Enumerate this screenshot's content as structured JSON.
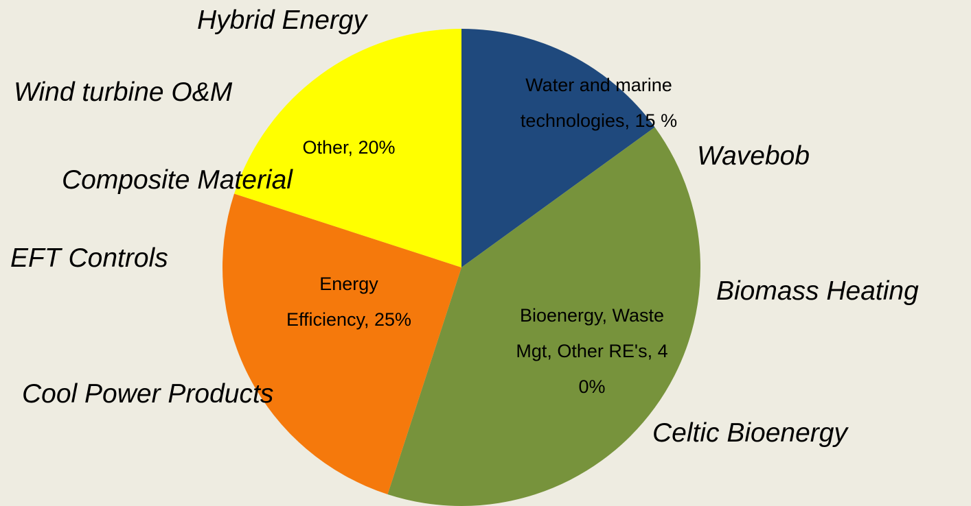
{
  "chart_data": {
    "type": "pie",
    "values": [
      15,
      40,
      25,
      20
    ],
    "value_labels": [
      "Water and marine technologies, 15 %",
      "Bioenergy, Waste Mgt, Other RE's, 40%",
      "Energy Efficiency, 25%",
      "Other, 20%"
    ],
    "colors": [
      "#1f497d",
      "#77933c",
      "#f5790c",
      "#ffff00"
    ],
    "annotations": [
      "Hybrid Energy",
      "Wind turbine O&M",
      "Composite Material",
      "EFT Controls",
      "Cool Power Products",
      "Wavebob",
      "Biomass Heating",
      "Celtic Bioenergy"
    ]
  }
}
